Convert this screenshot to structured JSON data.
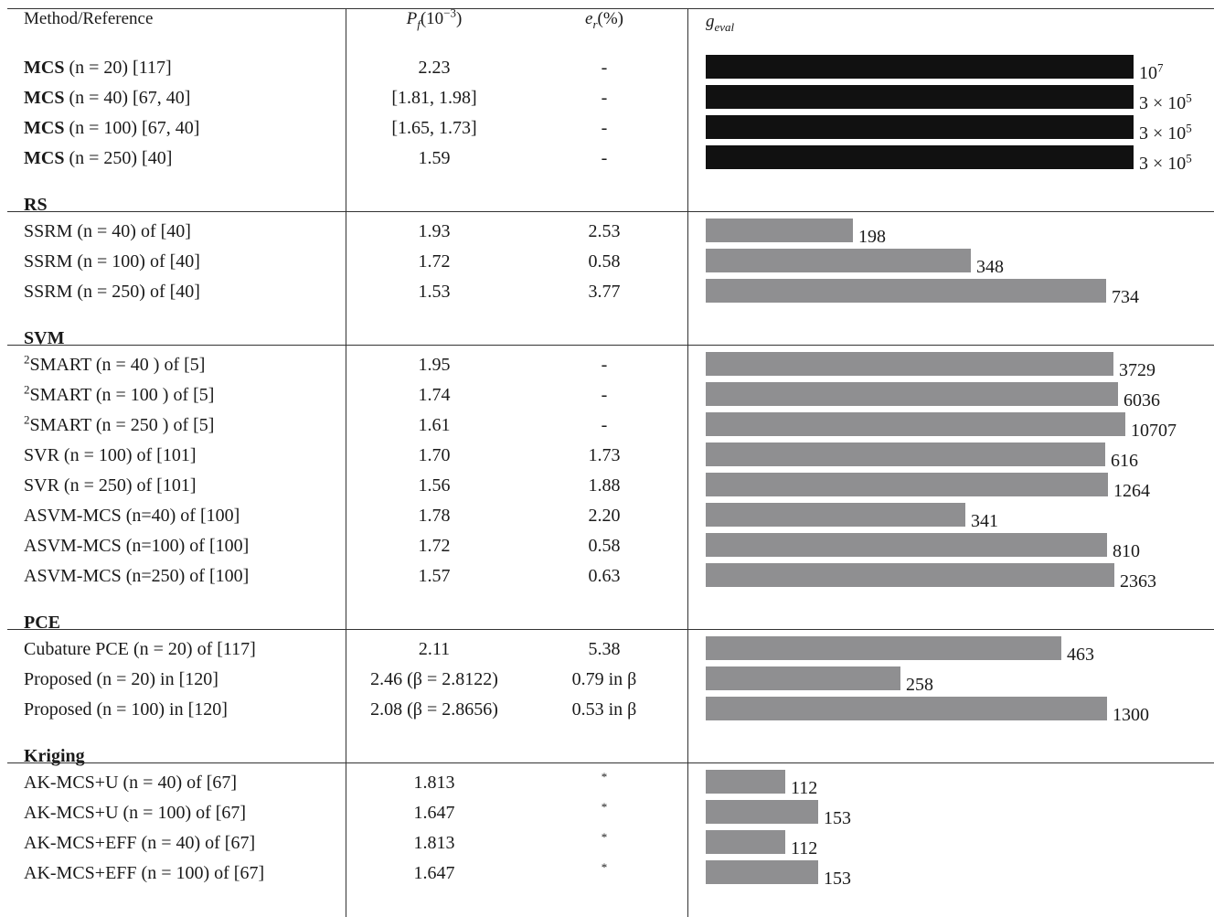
{
  "header": {
    "method": "Method/Reference",
    "pf": "P_f(10^-3)",
    "er": "e_r(%)",
    "geval": "g_eval"
  },
  "sections": [
    {
      "name": "",
      "rows": [
        {
          "prefix": "MCS",
          "method": " (n = 20) [117]",
          "pf": "2.23",
          "er": "-",
          "geval": 10000000,
          "geval_label": "10^7",
          "bar_color": "#111111"
        },
        {
          "prefix": "MCS",
          "method": " (n = 40) [67, 40]",
          "pf": "[1.81, 1.98]",
          "er": "-",
          "geval": 300000,
          "geval_label": "3 × 10^5",
          "bar_color": "#111111"
        },
        {
          "prefix": "MCS",
          "method": " (n = 100) [67, 40]",
          "pf": "[1.65, 1.73]",
          "er": "-",
          "geval": 300000,
          "geval_label": "3 × 10^5",
          "bar_color": "#111111"
        },
        {
          "prefix": "MCS",
          "method": " (n = 250) [40]",
          "pf": "1.59",
          "er": "-",
          "geval": 300000,
          "geval_label": "3 × 10^5",
          "bar_color": "#111111"
        }
      ]
    },
    {
      "name": "RS",
      "rows": [
        {
          "method": "SSRM (n = 40) of [40]",
          "pf": "1.93",
          "er": "2.53",
          "geval": 198,
          "geval_label": "198"
        },
        {
          "method": "SSRM (n = 100) of [40]",
          "pf": "1.72",
          "er": "0.58",
          "geval": 348,
          "geval_label": "348"
        },
        {
          "method": "SSRM (n = 250) of [40]",
          "pf": "1.53",
          "er": "3.77",
          "geval": 734,
          "geval_label": "734"
        }
      ]
    },
    {
      "name": "SVM",
      "rows": [
        {
          "sup": "2",
          "method": "SMART (n = 40 ) of [5]",
          "pf": "1.95",
          "er": "-",
          "geval": 3729,
          "geval_label": "3729"
        },
        {
          "sup": "2",
          "method": "SMART (n = 100 ) of [5]",
          "pf": "1.74",
          "er": "-",
          "geval": 6036,
          "geval_label": "6036"
        },
        {
          "sup": "2",
          "method": "SMART (n = 250 ) of [5]",
          "pf": "1.61",
          "er": "-",
          "geval": 10707,
          "geval_label": "10707"
        },
        {
          "method": "SVR (n = 100) of [101]",
          "pf": "1.70",
          "er": "1.73",
          "geval": 616,
          "geval_label": "616"
        },
        {
          "method": "SVR (n = 250) of [101]",
          "pf": "1.56",
          "er": "1.88",
          "geval": 1264,
          "geval_label": "1264"
        },
        {
          "method": "ASVM-MCS (n=40) of [100]",
          "pf": "1.78",
          "er": "2.20",
          "geval": 341,
          "geval_label": "341"
        },
        {
          "method": "ASVM-MCS (n=100) of [100]",
          "pf": "1.72",
          "er": "0.58",
          "geval": 810,
          "geval_label": "810"
        },
        {
          "method": "ASVM-MCS (n=250) of [100]",
          "pf": "1.57",
          "er": "0.63",
          "geval": 2363,
          "geval_label": "2363"
        }
      ]
    },
    {
      "name": "PCE",
      "rows": [
        {
          "method": "Cubature PCE (n = 20) of [117]",
          "pf": "2.11",
          "er": "5.38",
          "geval": 463,
          "geval_label": "463"
        },
        {
          "method": "Proposed (n = 20) in [120]",
          "pf": "2.46 (β = 2.8122)",
          "er": "0.79 in β",
          "geval": 258,
          "geval_label": "258"
        },
        {
          "method": "Proposed (n = 100) in [120]",
          "pf": "2.08 (β = 2.8656)",
          "er": "0.53 in β",
          "geval": 1300,
          "geval_label": "1300"
        }
      ]
    },
    {
      "name": "Kriging",
      "rows": [
        {
          "method": "AK-MCS+U (n = 40) of [67]",
          "pf": "1.813",
          "er": "*",
          "geval": 112,
          "geval_label": "112"
        },
        {
          "method": "AK-MCS+U (n = 100) of [67]",
          "pf": "1.647",
          "er": "*",
          "geval": 153,
          "geval_label": "153"
        },
        {
          "method": "AK-MCS+EFF (n = 40) of [67]",
          "pf": "1.813",
          "er": "*",
          "geval": 112,
          "geval_label": "112"
        },
        {
          "method": "AK-MCS+EFF (n = 100) of [67]",
          "pf": "1.647",
          "er": "*",
          "geval": 153,
          "geval_label": "153"
        }
      ]
    }
  ],
  "colors": {
    "bar_gray": "#8f8f91",
    "bar_black": "#111111",
    "rule": "#333333"
  }
}
